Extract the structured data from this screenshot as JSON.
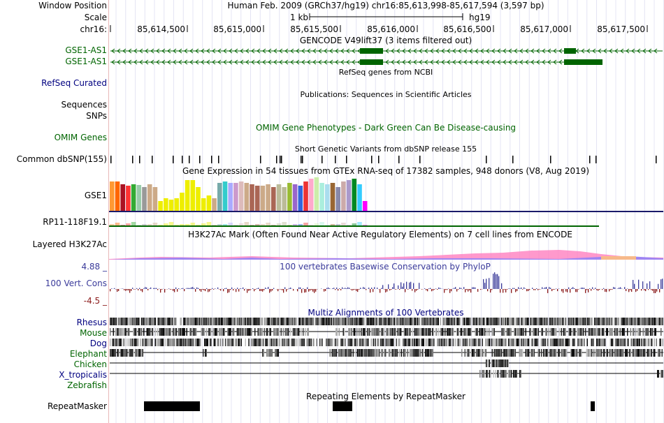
{
  "header": {
    "window_position_label": "Window Position",
    "scale_label": "Scale",
    "chrom_label": "chr16:",
    "assembly_text": "Human Feb. 2009 (GRCh37/hg19)   chr16:85,613,998-85,617,594 (3,597 bp)",
    "scale_text": "1 kb",
    "scale_assembly": "hg19",
    "ruler_ticks": [
      "85,614,500",
      "85,615,000",
      "85,615,500",
      "85,616,000",
      "85,616,500",
      "85,617,000",
      "85,617,500"
    ]
  },
  "tracks": {
    "gencode": {
      "title": "GENCODE V49lift37 (3 items filtered out)",
      "items": [
        "GSE1-AS1",
        "GSE1-AS1"
      ]
    },
    "refseq": {
      "title": "RefSeq genes from NCBI",
      "label": "RefSeq Curated"
    },
    "publications": {
      "title": "Publications: Sequences in Scientific Articles",
      "label_1": "Sequences",
      "label_2": "SNPs"
    },
    "omim": {
      "title": "OMIM Gene Phenotypes - Dark Green Can Be Disease-causing",
      "label": "OMIM Genes"
    },
    "dbsnp": {
      "title": "Short Genetic Variants from dbSNP release 155",
      "label": "Common dbSNP(155)"
    },
    "gtex": {
      "title": "Gene Expression in 54 tissues from GTEx RNA-seq of 17382 samples, 948 donors (V8, Aug 2019)",
      "gene_1": "GSE1",
      "gene_2": "RP11-118F19.1"
    },
    "h3k27ac": {
      "title": "H3K27Ac Mark (Often Found Near Active Regulatory Elements) on 7 cell lines from ENCODE",
      "label": "Layered H3K27Ac"
    },
    "phylop": {
      "title": "100 vertebrates Basewise Conservation by PhyloP",
      "label": "100 Vert. Cons",
      "max": "4.88 _",
      "min": "-4.5 _"
    },
    "multiz": {
      "title": "Multiz Alignments of 100 Vertebrates",
      "species": [
        "Rhesus",
        "Mouse",
        "Dog",
        "Elephant",
        "Chicken",
        "X_tropicalis",
        "Zebrafish"
      ]
    },
    "repeatmasker": {
      "title": "Repeating Elements by RepeatMasker",
      "label": "RepeatMasker"
    }
  },
  "colors": {
    "gene_green": "#006400",
    "refseq_navy": "#000080",
    "phylop_pos": "#3a3a9a",
    "phylop_neg": "#8b1a1a"
  }
}
